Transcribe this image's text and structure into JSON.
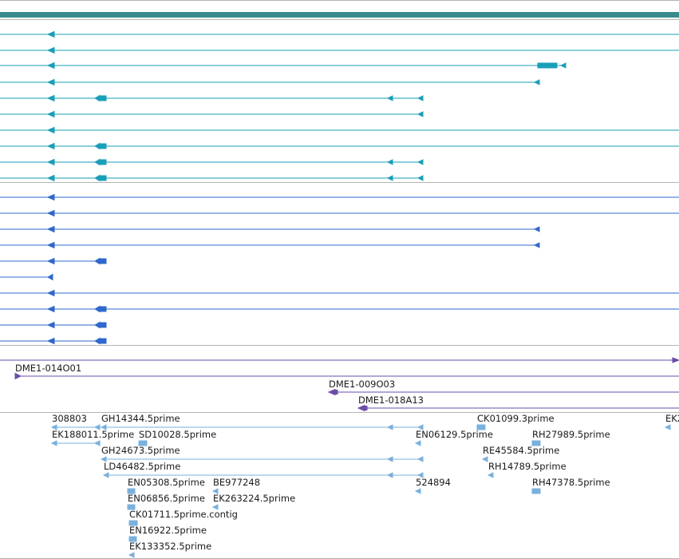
{
  "colors": {
    "ruler": "#3a8c8c",
    "track_divider": "#b4b4b4",
    "transcript_teal": "#1a9fb8",
    "transcript_blue": "#2f68cc",
    "clone_purple": "#6a4ea8",
    "est_light": "#7ab0dc"
  },
  "clones": [
    {
      "label": "DME1-014O01"
    },
    {
      "label": "DME1-009O03"
    },
    {
      "label": "DME1-018A13"
    }
  ],
  "est_labels": [
    "308803",
    "GH14344.5prime",
    "CK01099.3prime",
    "EK2",
    "EK188011.5prime",
    "SD10028.5prime",
    "EN06129.5prime",
    "RH27989.5prime",
    "GH24673.5prime",
    "RE45584.5prime",
    "LD46482.5prime",
    "RH14789.5prime",
    "EN05308.5prime",
    "BE977248",
    "524894",
    "RH47378.5prime",
    "EN06856.5prime",
    "EK263224.5prime",
    "CK01711.5prime.contig",
    "EN16922.5prime",
    "EK133352.5prime"
  ],
  "icons": {
    "strand_arrow": "left-pointing-triangle-icon"
  }
}
